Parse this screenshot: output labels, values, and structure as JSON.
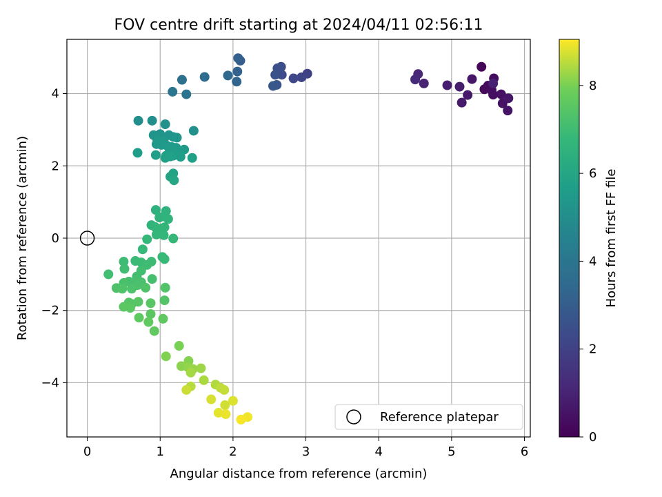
{
  "chart_data": {
    "type": "scatter",
    "title": "FOV centre drift starting at 2024/04/11 02:56:11",
    "xlabel": "Angular distance from reference (arcmin)",
    "ylabel": "Rotation from reference (arcmin)",
    "xlim": [
      -0.28,
      6.08
    ],
    "ylim": [
      -5.5,
      5.5
    ],
    "xticks": [
      0,
      1,
      2,
      3,
      4,
      5,
      6
    ],
    "yticks": [
      -4,
      -2,
      0,
      2,
      4
    ],
    "grid": true,
    "legend": {
      "label": "Reference platepar",
      "placement": "lower-right"
    },
    "reference_point": {
      "x": 0,
      "y": 0
    },
    "colorbar": {
      "label": "Hours from first FF file",
      "range": [
        0,
        9.05
      ],
      "ticks": [
        0,
        2,
        4,
        6,
        8
      ],
      "colormap": "viridis"
    },
    "series": [
      {
        "values": [
          {
            "x": 5.41,
            "y": 4.74,
            "c": 0.15
          },
          {
            "x": 5.45,
            "y": 4.12,
            "c": 0.2
          },
          {
            "x": 5.5,
            "y": 4.22,
            "c": 0.25
          },
          {
            "x": 5.55,
            "y": 4.1,
            "c": 0.3
          },
          {
            "x": 5.58,
            "y": 4.42,
            "c": 0.35
          },
          {
            "x": 5.57,
            "y": 3.97,
            "c": 0.4
          },
          {
            "x": 5.68,
            "y": 3.98,
            "c": 0.45
          },
          {
            "x": 5.7,
            "y": 3.73,
            "c": 0.5
          },
          {
            "x": 5.77,
            "y": 3.53,
            "c": 0.55
          },
          {
            "x": 5.78,
            "y": 3.87,
            "c": 0.6
          },
          {
            "x": 5.28,
            "y": 4.4,
            "c": 0.65
          },
          {
            "x": 5.22,
            "y": 3.96,
            "c": 0.7
          },
          {
            "x": 5.14,
            "y": 3.75,
            "c": 0.75
          },
          {
            "x": 5.11,
            "y": 4.19,
            "c": 0.8
          },
          {
            "x": 4.94,
            "y": 4.23,
            "c": 0.85
          },
          {
            "x": 5.57,
            "y": 4.28,
            "c": 0.9
          },
          {
            "x": 4.62,
            "y": 4.28,
            "c": 1.0
          },
          {
            "x": 4.54,
            "y": 4.54,
            "c": 1.1
          },
          {
            "x": 4.5,
            "y": 4.39,
            "c": 1.2
          },
          {
            "x": 3.02,
            "y": 4.55,
            "c": 2.0
          },
          {
            "x": 2.94,
            "y": 4.45,
            "c": 2.1
          },
          {
            "x": 2.83,
            "y": 4.42,
            "c": 2.2
          },
          {
            "x": 2.67,
            "y": 4.52,
            "c": 2.3
          },
          {
            "x": 2.66,
            "y": 4.74,
            "c": 2.4
          },
          {
            "x": 2.61,
            "y": 4.7,
            "c": 2.5
          },
          {
            "x": 2.58,
            "y": 4.52,
            "c": 2.6
          },
          {
            "x": 2.6,
            "y": 4.24,
            "c": 2.7
          },
          {
            "x": 2.55,
            "y": 4.21,
            "c": 2.8
          },
          {
            "x": 2.1,
            "y": 4.91,
            "c": 3.0
          },
          {
            "x": 2.07,
            "y": 4.98,
            "c": 3.1
          },
          {
            "x": 2.06,
            "y": 4.61,
            "c": 3.2
          },
          {
            "x": 2.05,
            "y": 4.33,
            "c": 3.3
          },
          {
            "x": 1.93,
            "y": 4.5,
            "c": 3.4
          },
          {
            "x": 1.61,
            "y": 4.46,
            "c": 3.6
          },
          {
            "x": 1.3,
            "y": 4.38,
            "c": 3.8
          },
          {
            "x": 1.36,
            "y": 3.98,
            "c": 3.9
          },
          {
            "x": 1.17,
            "y": 4.05,
            "c": 4.0
          },
          {
            "x": 0.7,
            "y": 3.25,
            "c": 5.0
          },
          {
            "x": 0.89,
            "y": 3.25,
            "c": 5.05
          },
          {
            "x": 1.07,
            "y": 3.15,
            "c": 5.1
          },
          {
            "x": 1.46,
            "y": 2.97,
            "c": 5.15
          },
          {
            "x": 0.91,
            "y": 2.85,
            "c": 5.2
          },
          {
            "x": 1.0,
            "y": 2.88,
            "c": 5.22
          },
          {
            "x": 1.12,
            "y": 2.85,
            "c": 5.25
          },
          {
            "x": 1.18,
            "y": 2.8,
            "c": 5.3
          },
          {
            "x": 1.23,
            "y": 2.78,
            "c": 5.33
          },
          {
            "x": 0.96,
            "y": 2.72,
            "c": 5.36
          },
          {
            "x": 1.05,
            "y": 2.68,
            "c": 5.4
          },
          {
            "x": 0.95,
            "y": 2.6,
            "c": 5.42
          },
          {
            "x": 1.02,
            "y": 2.58,
            "c": 5.45
          },
          {
            "x": 1.1,
            "y": 2.55,
            "c": 5.48
          },
          {
            "x": 1.16,
            "y": 2.52,
            "c": 5.5
          },
          {
            "x": 1.22,
            "y": 2.5,
            "c": 5.52
          },
          {
            "x": 1.33,
            "y": 2.45,
            "c": 5.55
          },
          {
            "x": 1.13,
            "y": 2.4,
            "c": 5.57
          },
          {
            "x": 1.21,
            "y": 2.36,
            "c": 5.6
          },
          {
            "x": 0.69,
            "y": 2.36,
            "c": 5.62
          },
          {
            "x": 0.94,
            "y": 2.3,
            "c": 5.65
          },
          {
            "x": 1.08,
            "y": 2.28,
            "c": 5.67
          },
          {
            "x": 1.18,
            "y": 2.28,
            "c": 5.7
          },
          {
            "x": 1.28,
            "y": 2.25,
            "c": 5.72
          },
          {
            "x": 1.44,
            "y": 2.22,
            "c": 5.75
          },
          {
            "x": 1.14,
            "y": 2.26,
            "c": 5.77
          },
          {
            "x": 1.07,
            "y": 2.22,
            "c": 5.8
          },
          {
            "x": 1.18,
            "y": 1.79,
            "c": 5.9
          },
          {
            "x": 1.14,
            "y": 1.7,
            "c": 5.95
          },
          {
            "x": 1.19,
            "y": 1.6,
            "c": 6.0
          },
          {
            "x": 0.94,
            "y": 0.78,
            "c": 6.5
          },
          {
            "x": 1.08,
            "y": 0.75,
            "c": 6.52
          },
          {
            "x": 1.05,
            "y": 0.6,
            "c": 6.55
          },
          {
            "x": 0.99,
            "y": 0.57,
            "c": 6.57
          },
          {
            "x": 1.11,
            "y": 0.53,
            "c": 6.6
          },
          {
            "x": 0.88,
            "y": 0.36,
            "c": 6.62
          },
          {
            "x": 0.93,
            "y": 0.31,
            "c": 6.65
          },
          {
            "x": 1.02,
            "y": 0.27,
            "c": 6.67
          },
          {
            "x": 1.06,
            "y": 0.3,
            "c": 6.7
          },
          {
            "x": 0.95,
            "y": 0.1,
            "c": 6.72
          },
          {
            "x": 1.05,
            "y": 0.08,
            "c": 6.75
          },
          {
            "x": 0.82,
            "y": -0.03,
            "c": 6.77
          },
          {
            "x": 1.18,
            "y": -0.01,
            "c": 6.8
          },
          {
            "x": 0.76,
            "y": -0.31,
            "c": 6.82
          },
          {
            "x": 1.03,
            "y": -0.52,
            "c": 6.85
          },
          {
            "x": 1.06,
            "y": -0.58,
            "c": 6.87
          },
          {
            "x": 0.66,
            "y": -0.63,
            "c": 6.9
          },
          {
            "x": 0.74,
            "y": -0.67,
            "c": 6.92
          },
          {
            "x": 0.88,
            "y": -0.65,
            "c": 6.95
          },
          {
            "x": 0.5,
            "y": -0.65,
            "c": 6.97
          },
          {
            "x": 0.82,
            "y": -0.74,
            "c": 7.0
          },
          {
            "x": 0.51,
            "y": -0.85,
            "c": 7.02
          },
          {
            "x": 0.74,
            "y": -0.9,
            "c": 7.05
          },
          {
            "x": 0.29,
            "y": -1.0,
            "c": 7.07
          },
          {
            "x": 0.68,
            "y": -1.06,
            "c": 7.1
          },
          {
            "x": 0.89,
            "y": -1.13,
            "c": 7.12
          },
          {
            "x": 0.57,
            "y": -1.2,
            "c": 7.15
          },
          {
            "x": 0.62,
            "y": -1.23,
            "c": 7.17
          },
          {
            "x": 0.74,
            "y": -1.22,
            "c": 7.2
          },
          {
            "x": 0.5,
            "y": -1.24,
            "c": 7.22
          },
          {
            "x": 0.69,
            "y": -1.3,
            "c": 7.25
          },
          {
            "x": 0.61,
            "y": -1.4,
            "c": 7.27
          },
          {
            "x": 0.4,
            "y": -1.38,
            "c": 7.3
          },
          {
            "x": 0.48,
            "y": -1.4,
            "c": 7.32
          },
          {
            "x": 0.8,
            "y": -1.37,
            "c": 7.35
          },
          {
            "x": 1.07,
            "y": -1.37,
            "c": 7.37
          },
          {
            "x": 1.06,
            "y": -1.72,
            "c": 7.4
          },
          {
            "x": 0.57,
            "y": -1.78,
            "c": 7.42
          },
          {
            "x": 0.61,
            "y": -1.82,
            "c": 7.45
          },
          {
            "x": 0.7,
            "y": -1.76,
            "c": 7.47
          },
          {
            "x": 0.87,
            "y": -1.8,
            "c": 7.5
          },
          {
            "x": 0.5,
            "y": -1.9,
            "c": 7.52
          },
          {
            "x": 0.59,
            "y": -1.93,
            "c": 7.55
          },
          {
            "x": 0.87,
            "y": -2.1,
            "c": 7.57
          },
          {
            "x": 0.71,
            "y": -2.2,
            "c": 7.6
          },
          {
            "x": 1.04,
            "y": -2.23,
            "c": 7.62
          },
          {
            "x": 0.84,
            "y": -2.32,
            "c": 7.65
          },
          {
            "x": 0.92,
            "y": -2.57,
            "c": 7.67
          },
          {
            "x": 1.26,
            "y": -2.98,
            "c": 8.0
          },
          {
            "x": 1.08,
            "y": -3.27,
            "c": 8.05
          },
          {
            "x": 1.39,
            "y": -3.4,
            "c": 8.1
          },
          {
            "x": 1.29,
            "y": -3.54,
            "c": 8.15
          },
          {
            "x": 1.38,
            "y": -3.57,
            "c": 8.2
          },
          {
            "x": 1.45,
            "y": -3.62,
            "c": 8.25
          },
          {
            "x": 1.56,
            "y": -3.6,
            "c": 8.3
          },
          {
            "x": 1.42,
            "y": -3.72,
            "c": 8.35
          },
          {
            "x": 1.6,
            "y": -3.93,
            "c": 8.4
          },
          {
            "x": 1.76,
            "y": -4.05,
            "c": 8.45
          },
          {
            "x": 1.42,
            "y": -4.1,
            "c": 8.5
          },
          {
            "x": 1.83,
            "y": -4.14,
            "c": 8.55
          },
          {
            "x": 1.88,
            "y": -4.2,
            "c": 8.6
          },
          {
            "x": 1.36,
            "y": -4.2,
            "c": 8.65
          },
          {
            "x": 1.89,
            "y": -4.62,
            "c": 8.7
          },
          {
            "x": 1.7,
            "y": -4.46,
            "c": 8.75
          },
          {
            "x": 2.0,
            "y": -4.5,
            "c": 8.8
          },
          {
            "x": 1.8,
            "y": -4.83,
            "c": 8.85
          },
          {
            "x": 1.9,
            "y": -4.87,
            "c": 8.9
          },
          {
            "x": 2.2,
            "y": -4.95,
            "c": 8.95
          },
          {
            "x": 2.11,
            "y": -5.02,
            "c": 9.0
          }
        ]
      }
    ]
  }
}
